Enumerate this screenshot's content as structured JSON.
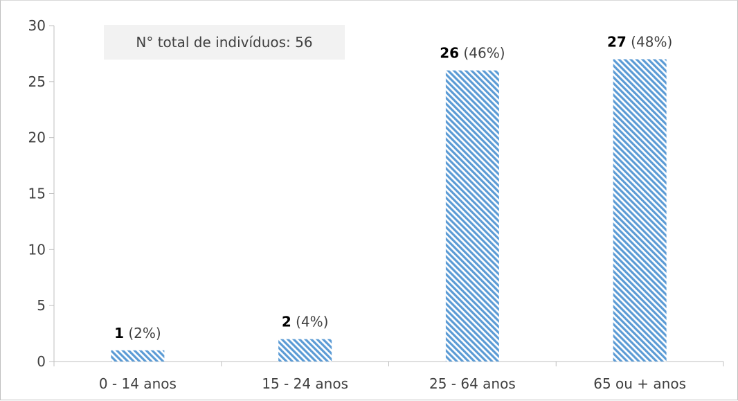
{
  "chart_data": {
    "type": "bar",
    "categories": [
      "0 - 14 anos",
      "15 - 24 anos",
      "25 - 64 anos",
      "65 ou + anos"
    ],
    "values": [
      1,
      2,
      26,
      27
    ],
    "percent_labels": [
      "(2%)",
      "(4%)",
      "(46%)",
      "(48%)"
    ],
    "title": "",
    "xlabel": "",
    "ylabel": "",
    "ylim": [
      0,
      30
    ],
    "yticks": [
      0,
      5,
      10,
      15,
      20,
      25,
      30
    ],
    "grid": false,
    "legend": "none",
    "annotation": "N° total de indivíduos: 56",
    "colors": {
      "bar": "#5b9bd5",
      "bar_background": "#ffffff",
      "axis": "#bfbfbf",
      "annotation_bg": "#f2f2f2"
    }
  }
}
